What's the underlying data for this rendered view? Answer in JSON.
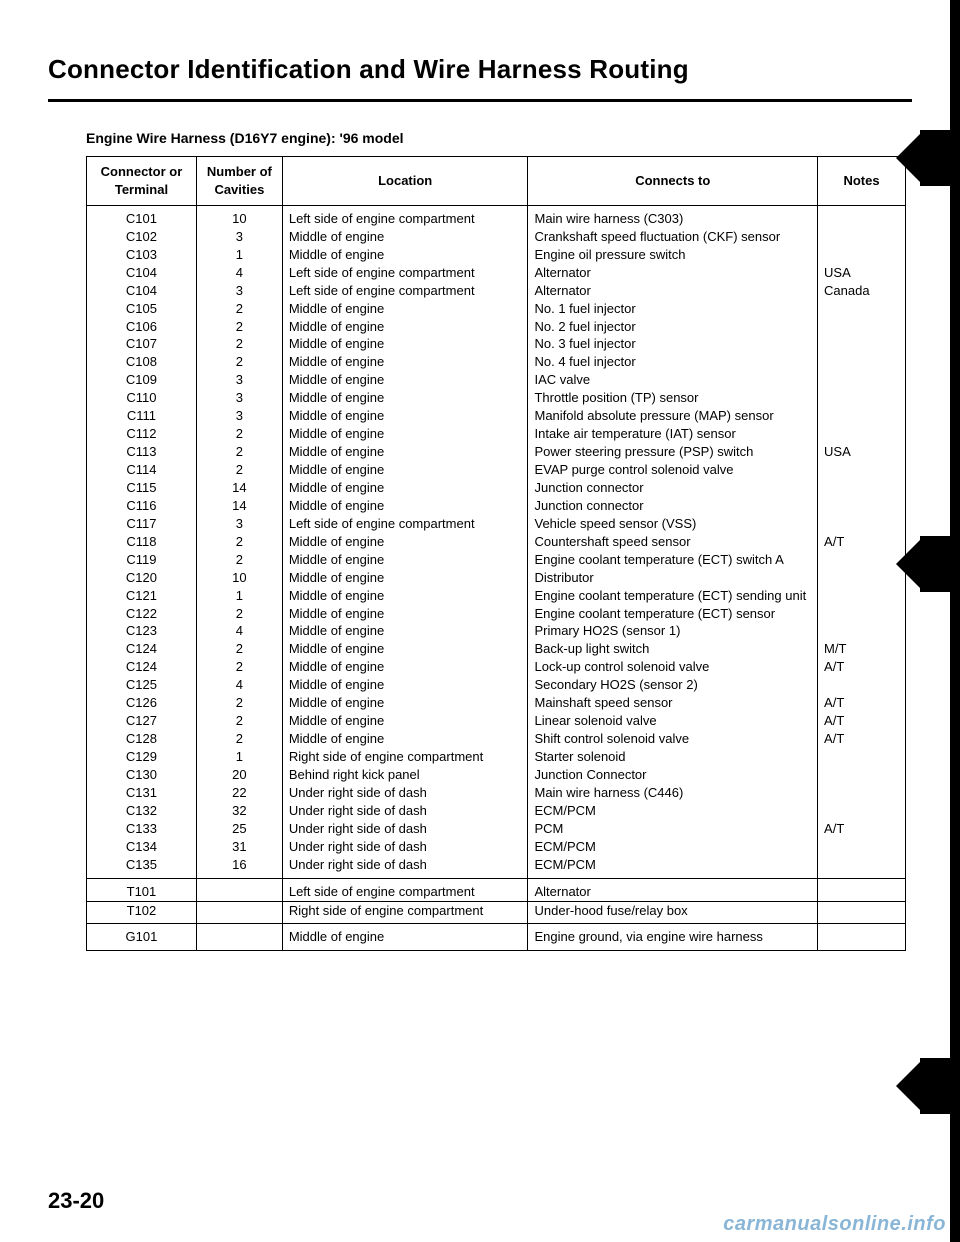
{
  "title": "Connector Identification and Wire Harness Routing",
  "subhead": "Engine Wire Harness (D16Y7 engine): '96 model",
  "page_number": "23-20",
  "watermark": "carmanualsonline.info",
  "columns": {
    "connector": "Connector or Terminal",
    "cavities": "Number of Cavities",
    "location": "Location",
    "connects_to": "Connects to",
    "notes": "Notes"
  },
  "sections": [
    {
      "rows": [
        {
          "c": "C101",
          "n": "10",
          "loc": "Left side of engine compartment",
          "to": "Main wire harness (C303)",
          "note": ""
        },
        {
          "c": "C102",
          "n": "3",
          "loc": "Middle of engine",
          "to": "Crankshaft speed fluctuation (CKF) sensor",
          "note": ""
        },
        {
          "c": "C103",
          "n": "1",
          "loc": "Middle of engine",
          "to": "Engine oil pressure switch",
          "note": ""
        },
        {
          "c": "C104",
          "n": "4",
          "loc": "Left side of engine compartment",
          "to": "Alternator",
          "note": "USA"
        },
        {
          "c": "C104",
          "n": "3",
          "loc": "Left side of engine compartment",
          "to": "Alternator",
          "note": "Canada"
        },
        {
          "c": "C105",
          "n": "2",
          "loc": "Middle of engine",
          "to": "No. 1 fuel injector",
          "note": ""
        },
        {
          "c": "C106",
          "n": "2",
          "loc": "Middle of engine",
          "to": "No. 2 fuel injector",
          "note": ""
        },
        {
          "c": "C107",
          "n": "2",
          "loc": "Middle of engine",
          "to": "No. 3 fuel injector",
          "note": ""
        },
        {
          "c": "C108",
          "n": "2",
          "loc": "Middle of engine",
          "to": "No. 4 fuel injector",
          "note": ""
        },
        {
          "c": "C109",
          "n": "3",
          "loc": "Middle of engine",
          "to": "IAC valve",
          "note": ""
        },
        {
          "c": "C110",
          "n": "3",
          "loc": "Middle of engine",
          "to": "Throttle position (TP) sensor",
          "note": ""
        },
        {
          "c": "C111",
          "n": "3",
          "loc": "Middle of engine",
          "to": "Manifold absolute pressure (MAP) sensor",
          "note": ""
        },
        {
          "c": "C112",
          "n": "2",
          "loc": "Middle of engine",
          "to": "Intake air temperature (IAT) sensor",
          "note": ""
        },
        {
          "c": "C113",
          "n": "2",
          "loc": "Middle of engine",
          "to": "Power steering pressure (PSP) switch",
          "note": "USA"
        },
        {
          "c": "C114",
          "n": "2",
          "loc": "Middle of engine",
          "to": "EVAP purge control solenoid valve",
          "note": ""
        },
        {
          "c": "C115",
          "n": "14",
          "loc": "Middle of engine",
          "to": "Junction connector",
          "note": ""
        },
        {
          "c": "C116",
          "n": "14",
          "loc": "Middle of engine",
          "to": "Junction connector",
          "note": ""
        },
        {
          "c": "C117",
          "n": "3",
          "loc": "Left side of engine compartment",
          "to": "Vehicle speed sensor (VSS)",
          "note": ""
        },
        {
          "c": "C118",
          "n": "2",
          "loc": "Middle of engine",
          "to": "Countershaft speed sensor",
          "note": "A/T"
        },
        {
          "c": "C119",
          "n": "2",
          "loc": "Middle of engine",
          "to": "Engine coolant temperature (ECT) switch A",
          "note": ""
        },
        {
          "c": "C120",
          "n": "10",
          "loc": "Middle of engine",
          "to": "Distributor",
          "note": ""
        },
        {
          "c": "C121",
          "n": "1",
          "loc": "Middle of engine",
          "to": "Engine coolant temperature (ECT) sending unit",
          "note": ""
        },
        {
          "c": "C122",
          "n": "2",
          "loc": "Middle of engine",
          "to": "Engine coolant temperature (ECT) sensor",
          "note": ""
        },
        {
          "c": "C123",
          "n": "4",
          "loc": "Middle of engine",
          "to": "Primary HO2S (sensor 1)",
          "note": ""
        },
        {
          "c": "C124",
          "n": "2",
          "loc": "Middle of engine",
          "to": "Back-up light switch",
          "note": "M/T"
        },
        {
          "c": "C124",
          "n": "2",
          "loc": "Middle of engine",
          "to": "Lock-up control solenoid valve",
          "note": "A/T"
        },
        {
          "c": "C125",
          "n": "4",
          "loc": "Middle of engine",
          "to": "Secondary HO2S (sensor 2)",
          "note": ""
        },
        {
          "c": "C126",
          "n": "2",
          "loc": "Middle of engine",
          "to": "Mainshaft speed sensor",
          "note": "A/T"
        },
        {
          "c": "C127",
          "n": "2",
          "loc": "Middle of engine",
          "to": "Linear solenoid valve",
          "note": "A/T"
        },
        {
          "c": "C128",
          "n": "2",
          "loc": "Middle of engine",
          "to": "Shift control solenoid valve",
          "note": "A/T"
        },
        {
          "c": "C129",
          "n": "1",
          "loc": "Right side of engine compartment",
          "to": "Starter solenoid",
          "note": ""
        },
        {
          "c": "C130",
          "n": "20",
          "loc": "Behind right kick panel",
          "to": "Junction Connector",
          "note": ""
        },
        {
          "c": "C131",
          "n": "22",
          "loc": "Under right side of dash",
          "to": "Main wire harness (C446)",
          "note": ""
        },
        {
          "c": "C132",
          "n": "32",
          "loc": "Under right side of dash",
          "to": "ECM/PCM",
          "note": ""
        },
        {
          "c": "C133",
          "n": "25",
          "loc": "Under right side of dash",
          "to": "PCM",
          "note": "A/T"
        },
        {
          "c": "C134",
          "n": "31",
          "loc": "Under right side of dash",
          "to": "ECM/PCM",
          "note": ""
        },
        {
          "c": "C135",
          "n": "16",
          "loc": "Under right side of dash",
          "to": "ECM/PCM",
          "note": ""
        }
      ]
    },
    {
      "rows": [
        {
          "c": "T101",
          "n": "",
          "loc": "Left side of engine compartment",
          "to": "Alternator",
          "note": ""
        },
        {
          "c": "T102",
          "n": "",
          "loc": "Right side of engine compartment",
          "to": "Under-hood fuse/relay box",
          "note": ""
        }
      ]
    },
    {
      "rows": [
        {
          "c": "G101",
          "n": "",
          "loc": "Middle of engine",
          "to": "Engine ground, via engine wire harness",
          "note": ""
        }
      ]
    }
  ],
  "binder_tabs": [
    130,
    536,
    1058
  ]
}
